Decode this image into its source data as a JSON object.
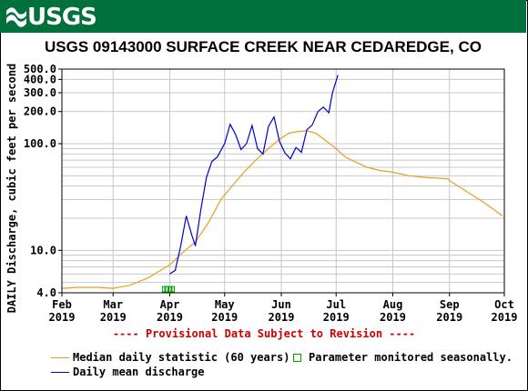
{
  "header": {
    "logo_text": "USGS",
    "title": "USGS 09143000 SURFACE CREEK NEAR CEDAREDGE, CO",
    "colors": {
      "banner": "#00703c",
      "median": "#e6a020",
      "daily": "#0000cc",
      "provisional": "#cc0000",
      "seasonal": "#00a000"
    }
  },
  "chart_data": {
    "type": "line",
    "ylabel": "DAILY Discharge, cubic feet per second",
    "yscale": "log",
    "ylim": [
      4,
      500
    ],
    "y_ticks": [
      {
        "value": 4,
        "label": "4.0"
      },
      {
        "value": 10,
        "label": "10.0"
      },
      {
        "value": 100,
        "label": "100.0"
      },
      {
        "value": 200,
        "label": "200.0"
      },
      {
        "value": 300,
        "label": "300.0"
      },
      {
        "value": 400,
        "label": "400.0"
      },
      {
        "value": 500,
        "label": "500.0"
      }
    ],
    "x_ticks": [
      {
        "date": "2019-02-01",
        "label1": "Feb",
        "label2": "2019"
      },
      {
        "date": "2019-03-01",
        "label1": "Mar",
        "label2": "2019"
      },
      {
        "date": "2019-04-01",
        "label1": "Apr",
        "label2": "2019"
      },
      {
        "date": "2019-05-01",
        "label1": "May",
        "label2": "2019"
      },
      {
        "date": "2019-06-01",
        "label1": "Jun",
        "label2": "2019"
      },
      {
        "date": "2019-07-01",
        "label1": "Jul",
        "label2": "2019"
      },
      {
        "date": "2019-08-01",
        "label1": "Aug",
        "label2": "2019"
      },
      {
        "date": "2019-09-01",
        "label1": "Sep",
        "label2": "2019"
      },
      {
        "date": "2019-10-01",
        "label1": "Oct",
        "label2": "2019"
      }
    ],
    "xlim": [
      "2019-02-01",
      "2019-10-01"
    ],
    "grid": true,
    "provisional_note": "---- Provisional Data Subject to Revision ----",
    "series": [
      {
        "name": "Median daily statistic (60 years)",
        "color": "#e6a020",
        "points": [
          [
            "2019-02-01",
            4.4
          ],
          [
            "2019-02-10",
            4.5
          ],
          [
            "2019-02-20",
            4.5
          ],
          [
            "2019-03-01",
            4.4
          ],
          [
            "2019-03-10",
            4.7
          ],
          [
            "2019-03-20",
            5.5
          ],
          [
            "2019-03-25",
            6.2
          ],
          [
            "2019-04-01",
            7.3
          ],
          [
            "2019-04-08",
            9.5
          ],
          [
            "2019-04-15",
            12
          ],
          [
            "2019-04-22",
            18
          ],
          [
            "2019-04-29",
            30
          ],
          [
            "2019-05-05",
            40
          ],
          [
            "2019-05-12",
            55
          ],
          [
            "2019-05-18",
            70
          ],
          [
            "2019-05-25",
            90
          ],
          [
            "2019-05-31",
            110
          ],
          [
            "2019-06-05",
            125
          ],
          [
            "2019-06-10",
            130
          ],
          [
            "2019-06-15",
            132
          ],
          [
            "2019-06-20",
            125
          ],
          [
            "2019-06-25",
            108
          ],
          [
            "2019-07-01",
            90
          ],
          [
            "2019-07-06",
            75
          ],
          [
            "2019-07-11",
            68
          ],
          [
            "2019-07-18",
            60
          ],
          [
            "2019-07-25",
            56
          ],
          [
            "2019-08-01",
            54
          ],
          [
            "2019-08-10",
            50
          ],
          [
            "2019-08-20",
            48
          ],
          [
            "2019-08-31",
            47
          ],
          [
            "2019-09-01",
            45
          ],
          [
            "2019-09-10",
            36
          ],
          [
            "2019-09-20",
            28
          ],
          [
            "2019-09-30",
            21
          ]
        ]
      },
      {
        "name": "Daily mean discharge",
        "color": "#0000cc",
        "points": [
          [
            "2019-04-01",
            6.0
          ],
          [
            "2019-04-04",
            6.5
          ],
          [
            "2019-04-07",
            11
          ],
          [
            "2019-04-10",
            21
          ],
          [
            "2019-04-13",
            14
          ],
          [
            "2019-04-15",
            11
          ],
          [
            "2019-04-18",
            24
          ],
          [
            "2019-04-21",
            48
          ],
          [
            "2019-04-24",
            68
          ],
          [
            "2019-04-27",
            75
          ],
          [
            "2019-05-01",
            100
          ],
          [
            "2019-05-04",
            152
          ],
          [
            "2019-05-07",
            122
          ],
          [
            "2019-05-10",
            88
          ],
          [
            "2019-05-13",
            100
          ],
          [
            "2019-05-16",
            148
          ],
          [
            "2019-05-19",
            90
          ],
          [
            "2019-05-22",
            80
          ],
          [
            "2019-05-25",
            145
          ],
          [
            "2019-05-28",
            178
          ],
          [
            "2019-05-31",
            105
          ],
          [
            "2019-06-03",
            82
          ],
          [
            "2019-06-06",
            72
          ],
          [
            "2019-06-09",
            92
          ],
          [
            "2019-06-12",
            83
          ],
          [
            "2019-06-15",
            135
          ],
          [
            "2019-06-18",
            150
          ],
          [
            "2019-06-21",
            200
          ],
          [
            "2019-06-24",
            220
          ],
          [
            "2019-06-27",
            195
          ],
          [
            "2019-06-29",
            300
          ],
          [
            "2019-07-02",
            440
          ]
        ]
      }
    ],
    "seasonal_marker": {
      "start": "2019-03-28",
      "end": "2019-04-04",
      "name": "Parameter monitored seasonally."
    }
  },
  "legend": {
    "median_label": "Median daily statistic (60 years)",
    "seasonal_label": "Parameter monitored seasonally.",
    "daily_label": "Daily mean discharge"
  }
}
